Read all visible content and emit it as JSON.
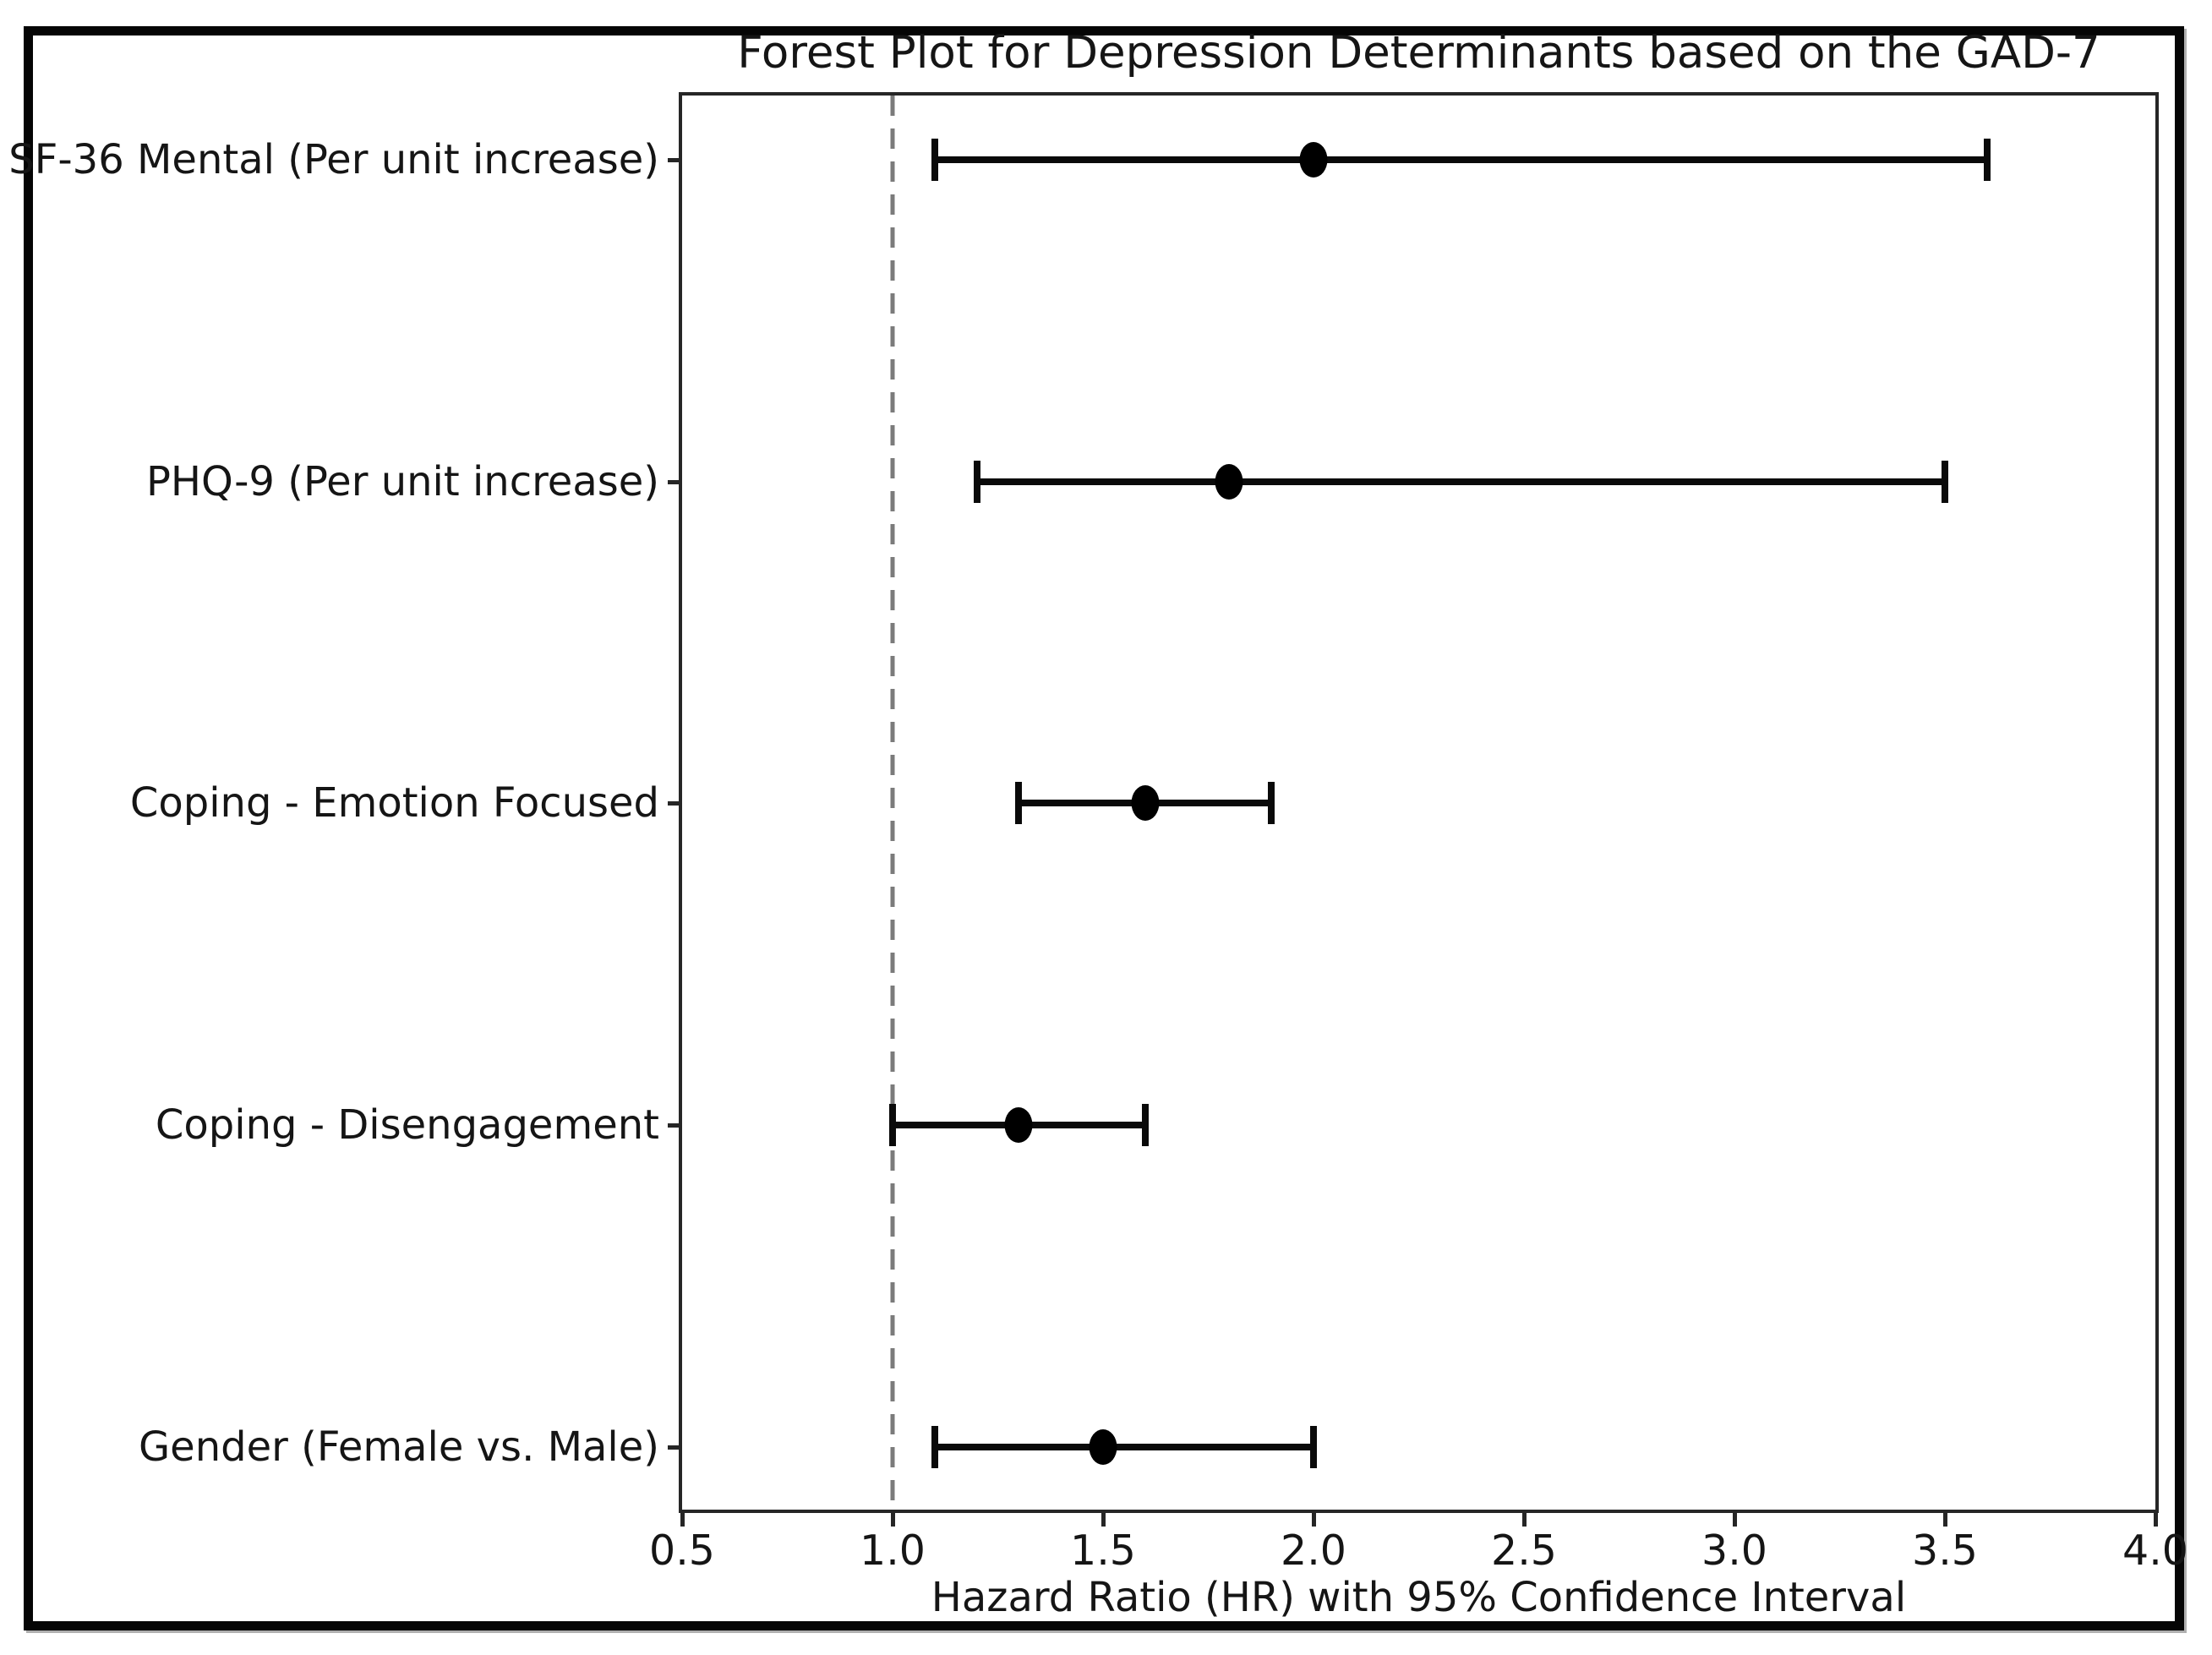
{
  "chart_data": {
    "type": "forest",
    "title": "Forest Plot for Depression Determinants based on the GAD-7",
    "xlabel": "Hazard Ratio (HR) with 95% Confidence Interval",
    "xlim": [
      0.5,
      4.0
    ],
    "x_ticks": [
      "0.5",
      "1.0",
      "1.5",
      "2.0",
      "2.5",
      "3.0",
      "3.5",
      "4.0"
    ],
    "reference_line_x": 1.0,
    "grid": false,
    "legend": "none",
    "series": [
      {
        "label": "SF-36 Mental (Per unit increase)",
        "hr": 2.0,
        "ci_low": 1.1,
        "ci_high": 3.6
      },
      {
        "label": "PHQ-9 (Per unit increase)",
        "hr": 1.8,
        "ci_low": 1.2,
        "ci_high": 3.5
      },
      {
        "label": "Coping - Emotion Focused",
        "hr": 1.6,
        "ci_low": 1.3,
        "ci_high": 1.9
      },
      {
        "label": "Coping - Disengagement",
        "hr": 1.3,
        "ci_low": 1.0,
        "ci_high": 1.6
      },
      {
        "label": "Gender (Female vs. Male)",
        "hr": 1.5,
        "ci_low": 1.1,
        "ci_high": 2.0
      }
    ],
    "colors": {
      "marker": "#000000",
      "error_bar": "#0a0a0a",
      "reference_line": "#7b7b7b",
      "text": "#151515",
      "frame_border": "#050505",
      "background": "#ffffff"
    }
  }
}
